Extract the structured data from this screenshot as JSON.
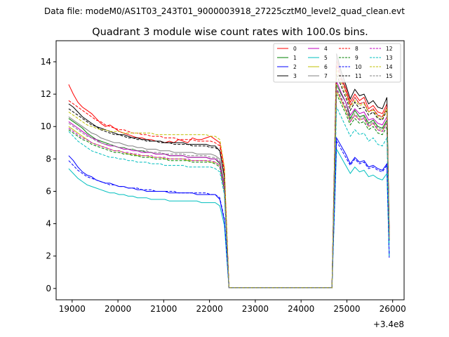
{
  "chart_data": {
    "type": "line",
    "suptitle": "Data file: modeM0/AS1T03_243T01_9000003918_27225cztM0_level2_quad_clean.evt",
    "title": "Quadrant 3 module wise count rates with 100.0s bins.",
    "xlabel": "",
    "ylabel": "",
    "x_offset_label": "+3.4e8",
    "xlim": [
      18650,
      26250
    ],
    "ylim": [
      -0.7,
      15.3
    ],
    "xticks": [
      19000,
      20000,
      21000,
      22000,
      23000,
      24000,
      25000,
      26000
    ],
    "yticks": [
      0,
      2,
      4,
      6,
      8,
      10,
      12,
      14
    ],
    "legend_position": "top-right",
    "grid": false,
    "x": [
      18925,
      19025,
      19125,
      19225,
      19325,
      19425,
      19525,
      19625,
      19725,
      19825,
      19925,
      20025,
      20125,
      20225,
      20325,
      20425,
      20525,
      20625,
      20725,
      20825,
      20925,
      21025,
      21125,
      21225,
      21325,
      21425,
      21525,
      21625,
      21725,
      21825,
      21925,
      22025,
      22125,
      22225,
      22325,
      22425,
      22525,
      24675,
      24775,
      24875,
      24975,
      25075,
      25175,
      25275,
      25375,
      25475,
      25575,
      25675,
      25775,
      25875,
      25925
    ],
    "series": [
      {
        "name": "0",
        "color": "#ff0000",
        "dash": "solid",
        "values": [
          12.6,
          12.0,
          11.5,
          11.2,
          11.0,
          10.8,
          10.5,
          10.2,
          10.0,
          10.1,
          9.9,
          9.7,
          9.6,
          9.5,
          9.4,
          9.3,
          9.3,
          9.2,
          9.2,
          9.1,
          9.1,
          9.0,
          9.1,
          9.0,
          9.2,
          9.1,
          9.0,
          9.3,
          9.2,
          9.2,
          9.3,
          9.4,
          9.2,
          9.0,
          7.4,
          0.05,
          0.05,
          0.05,
          14.1,
          13.1,
          12.4,
          11.5,
          12.0,
          11.6,
          11.8,
          11.1,
          11.3,
          10.9,
          10.8,
          11.4,
          3.6
        ]
      },
      {
        "name": "1",
        "color": "#008000",
        "dash": "solid",
        "values": [
          10.5,
          10.3,
          10.1,
          9.9,
          9.6,
          9.4,
          9.2,
          9.1,
          9.0,
          8.9,
          8.8,
          8.7,
          8.7,
          8.6,
          8.6,
          8.5,
          8.5,
          8.4,
          8.4,
          8.3,
          8.3,
          8.3,
          8.2,
          8.2,
          8.2,
          8.2,
          8.1,
          8.1,
          8.1,
          8.1,
          8.1,
          8.0,
          8.0,
          7.7,
          6.2,
          0.05,
          0.05,
          0.05,
          12.6,
          12.0,
          11.5,
          10.5,
          11.0,
          10.6,
          10.7,
          10.2,
          10.4,
          10.0,
          9.9,
          10.4,
          3.0
        ]
      },
      {
        "name": "2",
        "color": "#0000ff",
        "dash": "solid",
        "values": [
          8.2,
          7.9,
          7.5,
          7.2,
          7.0,
          6.9,
          6.7,
          6.6,
          6.5,
          6.5,
          6.4,
          6.3,
          6.3,
          6.2,
          6.2,
          6.1,
          6.1,
          6.0,
          6.0,
          6.0,
          6.0,
          6.0,
          5.9,
          5.9,
          5.9,
          5.9,
          5.9,
          5.9,
          5.8,
          5.8,
          5.8,
          5.8,
          5.8,
          5.5,
          4.2,
          0.05,
          0.05,
          0.05,
          9.3,
          8.8,
          8.3,
          7.7,
          8.1,
          7.8,
          7.9,
          7.5,
          7.6,
          7.4,
          7.3,
          7.7,
          1.9
        ]
      },
      {
        "name": "3",
        "color": "#000000",
        "dash": "solid",
        "values": [
          11.4,
          11.2,
          10.9,
          10.6,
          10.4,
          10.2,
          10.0,
          9.9,
          9.8,
          9.7,
          9.6,
          9.5,
          9.5,
          9.4,
          9.3,
          9.3,
          9.2,
          9.2,
          9.1,
          9.1,
          9.1,
          9.0,
          9.0,
          9.0,
          9.0,
          9.0,
          8.9,
          8.9,
          8.9,
          8.9,
          8.9,
          8.8,
          8.8,
          8.5,
          6.9,
          0.05,
          0.05,
          0.05,
          14.5,
          13.4,
          12.6,
          11.7,
          12.3,
          11.9,
          12.0,
          11.4,
          11.6,
          11.2,
          11.1,
          11.8,
          3.7
        ]
      },
      {
        "name": "4",
        "color": "#bf00bf",
        "dash": "solid",
        "values": [
          10.3,
          10.1,
          9.9,
          9.7,
          9.5,
          9.3,
          9.2,
          9.0,
          8.9,
          8.8,
          8.8,
          8.7,
          8.6,
          8.6,
          8.5,
          8.5,
          8.4,
          8.4,
          8.4,
          8.3,
          8.3,
          8.3,
          8.2,
          8.2,
          8.2,
          8.2,
          8.1,
          8.1,
          8.1,
          8.1,
          8.1,
          8.0,
          8.0,
          7.8,
          6.3,
          0.05,
          0.05,
          0.05,
          12.8,
          12.1,
          11.5,
          10.7,
          11.1,
          10.8,
          10.9,
          10.4,
          10.5,
          10.2,
          10.1,
          10.6,
          3.2
        ]
      },
      {
        "name": "5",
        "color": "#00bfbf",
        "dash": "solid",
        "values": [
          7.4,
          7.1,
          6.8,
          6.6,
          6.4,
          6.3,
          6.2,
          6.1,
          6.0,
          5.9,
          5.9,
          5.8,
          5.8,
          5.7,
          5.7,
          5.6,
          5.6,
          5.6,
          5.5,
          5.5,
          5.5,
          5.5,
          5.4,
          5.4,
          5.4,
          5.4,
          5.4,
          5.4,
          5.4,
          5.3,
          5.3,
          5.3,
          5.3,
          5.1,
          3.9,
          0.05,
          0.05,
          0.05,
          8.6,
          8.1,
          7.6,
          7.1,
          7.5,
          7.2,
          7.3,
          6.9,
          7.0,
          6.8,
          6.7,
          7.1,
          2.0
        ]
      },
      {
        "name": "6",
        "color": "#bfbf00",
        "dash": "solid",
        "values": [
          10.0,
          9.8,
          9.6,
          9.4,
          9.2,
          9.0,
          8.9,
          8.8,
          8.7,
          8.6,
          8.5,
          8.5,
          8.4,
          8.3,
          8.3,
          8.2,
          8.2,
          8.2,
          8.1,
          8.1,
          8.1,
          8.0,
          8.0,
          8.0,
          8.0,
          8.0,
          7.9,
          7.9,
          7.9,
          7.9,
          7.9,
          7.8,
          7.8,
          7.6,
          6.1,
          0.05,
          0.05,
          0.05,
          12.2,
          11.6,
          11.0,
          10.3,
          10.7,
          10.4,
          10.5,
          10.0,
          10.2,
          9.8,
          9.7,
          10.3,
          3.0
        ]
      },
      {
        "name": "7",
        "color": "#808080",
        "dash": "solid",
        "values": [
          10.6,
          10.4,
          10.2,
          10.0,
          9.8,
          9.6,
          9.5,
          9.3,
          9.2,
          9.1,
          9.0,
          9.0,
          8.9,
          8.8,
          8.8,
          8.7,
          8.7,
          8.6,
          8.6,
          8.6,
          8.5,
          8.5,
          8.5,
          8.4,
          8.4,
          8.4,
          8.4,
          8.4,
          8.3,
          8.3,
          8.3,
          8.3,
          8.2,
          8.0,
          6.5,
          0.05,
          0.05,
          0.05,
          14.4,
          13.1,
          12.2,
          11.3,
          11.8,
          11.4,
          11.5,
          10.9,
          11.1,
          10.7,
          10.6,
          11.2,
          3.3
        ]
      },
      {
        "name": "8",
        "color": "#ff0000",
        "dash": "dashed",
        "values": [
          11.6,
          11.4,
          11.2,
          11.0,
          10.8,
          10.6,
          10.4,
          10.3,
          10.1,
          10.0,
          9.9,
          9.8,
          9.8,
          9.7,
          9.6,
          9.6,
          9.5,
          9.5,
          9.4,
          9.4,
          9.4,
          9.3,
          9.3,
          9.3,
          9.2,
          9.2,
          9.2,
          9.2,
          9.1,
          9.1,
          9.1,
          9.1,
          9.0,
          8.8,
          7.2,
          0.05,
          0.05,
          0.05,
          13.8,
          12.9,
          12.2,
          11.3,
          11.8,
          11.4,
          11.5,
          10.9,
          11.1,
          10.7,
          10.6,
          11.2,
          3.4
        ]
      },
      {
        "name": "9",
        "color": "#008000",
        "dash": "dashed",
        "values": [
          9.8,
          9.6,
          9.4,
          9.2,
          9.1,
          8.9,
          8.8,
          8.7,
          8.6,
          8.5,
          8.4,
          8.4,
          8.3,
          8.3,
          8.2,
          8.2,
          8.1,
          8.1,
          8.1,
          8.0,
          8.0,
          8.0,
          7.9,
          7.9,
          7.9,
          7.9,
          7.9,
          7.8,
          7.8,
          7.8,
          7.8,
          7.8,
          7.7,
          7.5,
          6.0,
          0.05,
          0.05,
          0.05,
          12.0,
          11.4,
          10.8,
          10.1,
          10.5,
          10.2,
          10.3,
          9.8,
          10.0,
          9.6,
          9.5,
          10.0,
          2.9
        ]
      },
      {
        "name": "10",
        "color": "#0000ff",
        "dash": "dashed",
        "values": [
          7.9,
          7.6,
          7.3,
          7.1,
          6.9,
          6.8,
          6.7,
          6.6,
          6.5,
          6.4,
          6.4,
          6.3,
          6.3,
          6.2,
          6.2,
          6.2,
          6.1,
          6.1,
          6.1,
          6.0,
          6.0,
          6.0,
          6.0,
          6.0,
          5.9,
          5.9,
          5.9,
          5.9,
          5.9,
          5.9,
          5.9,
          5.8,
          5.8,
          5.6,
          4.3,
          0.05,
          0.05,
          0.05,
          9.1,
          8.6,
          8.1,
          7.6,
          8.0,
          7.7,
          7.8,
          7.4,
          7.5,
          7.3,
          7.2,
          7.6,
          2.1
        ]
      },
      {
        "name": "11",
        "color": "#000000",
        "dash": "dashed",
        "values": [
          11.1,
          10.9,
          10.7,
          10.5,
          10.3,
          10.1,
          10.0,
          9.8,
          9.7,
          9.6,
          9.5,
          9.5,
          9.4,
          9.3,
          9.3,
          9.2,
          9.2,
          9.1,
          9.1,
          9.1,
          9.0,
          9.0,
          9.0,
          8.9,
          8.9,
          8.9,
          8.9,
          8.8,
          8.8,
          8.8,
          8.8,
          8.7,
          8.7,
          8.5,
          6.9,
          0.05,
          0.05,
          0.05,
          13.2,
          12.5,
          11.8,
          11.0,
          11.5,
          11.1,
          11.2,
          10.7,
          10.9,
          10.5,
          10.4,
          11.0,
          3.3
        ]
      },
      {
        "name": "12",
        "color": "#bf00bf",
        "dash": "dashed",
        "values": [
          9.9,
          9.7,
          9.5,
          9.3,
          9.2,
          9.0,
          8.9,
          8.8,
          8.7,
          8.6,
          8.5,
          8.5,
          8.4,
          8.4,
          8.3,
          8.3,
          8.2,
          8.2,
          8.2,
          8.1,
          8.1,
          8.1,
          8.0,
          8.0,
          8.0,
          8.0,
          8.0,
          7.9,
          7.9,
          7.9,
          7.9,
          7.9,
          7.8,
          7.6,
          6.1,
          0.05,
          0.05,
          0.05,
          12.3,
          11.7,
          11.1,
          10.3,
          10.7,
          10.4,
          10.5,
          10.0,
          10.2,
          9.8,
          9.7,
          10.2,
          3.0
        ]
      },
      {
        "name": "13",
        "color": "#00bfbf",
        "dash": "dashed",
        "values": [
          9.7,
          9.4,
          9.1,
          8.9,
          8.7,
          8.5,
          8.4,
          8.3,
          8.2,
          8.1,
          8.1,
          8.0,
          8.0,
          7.9,
          7.9,
          7.8,
          7.8,
          7.8,
          7.7,
          7.7,
          7.7,
          7.6,
          7.6,
          7.6,
          7.6,
          7.6,
          7.5,
          7.5,
          7.5,
          7.5,
          7.5,
          7.5,
          7.4,
          7.2,
          5.8,
          0.05,
          0.05,
          0.05,
          11.2,
          10.6,
          10.0,
          9.4,
          9.8,
          9.5,
          9.6,
          9.1,
          9.3,
          8.9,
          8.8,
          9.3,
          2.7
        ]
      },
      {
        "name": "14",
        "color": "#bfbf00",
        "dash": "dashed",
        "values": [
          10.9,
          10.7,
          10.5,
          10.3,
          10.1,
          10.0,
          9.9,
          9.8,
          9.8,
          9.7,
          9.7,
          9.7,
          9.6,
          9.6,
          9.6,
          9.6,
          9.6,
          9.6,
          9.6,
          9.5,
          9.5,
          9.5,
          9.5,
          9.5,
          9.5,
          9.5,
          9.5,
          9.5,
          9.5,
          9.5,
          9.5,
          9.4,
          9.4,
          9.2,
          7.5,
          0.05,
          0.05,
          0.05,
          13.5,
          12.7,
          12.0,
          11.2,
          11.6,
          11.3,
          11.4,
          10.9,
          11.0,
          10.6,
          10.5,
          11.1,
          3.4
        ]
      },
      {
        "name": "15",
        "color": "#808080",
        "dash": "dashed",
        "values": [
          10.2,
          10.0,
          9.8,
          9.6,
          9.4,
          9.3,
          9.1,
          9.0,
          8.9,
          8.9,
          8.8,
          8.7,
          8.7,
          8.6,
          8.6,
          8.5,
          8.5,
          8.5,
          8.4,
          8.4,
          8.4,
          8.3,
          8.3,
          8.3,
          8.3,
          8.3,
          8.2,
          8.2,
          8.2,
          8.2,
          8.2,
          8.1,
          8.1,
          7.9,
          6.4,
          0.05,
          0.05,
          0.05,
          12.4,
          11.8,
          11.2,
          10.4,
          10.8,
          10.5,
          10.6,
          10.1,
          10.3,
          9.9,
          9.8,
          10.3,
          3.1
        ]
      }
    ]
  }
}
